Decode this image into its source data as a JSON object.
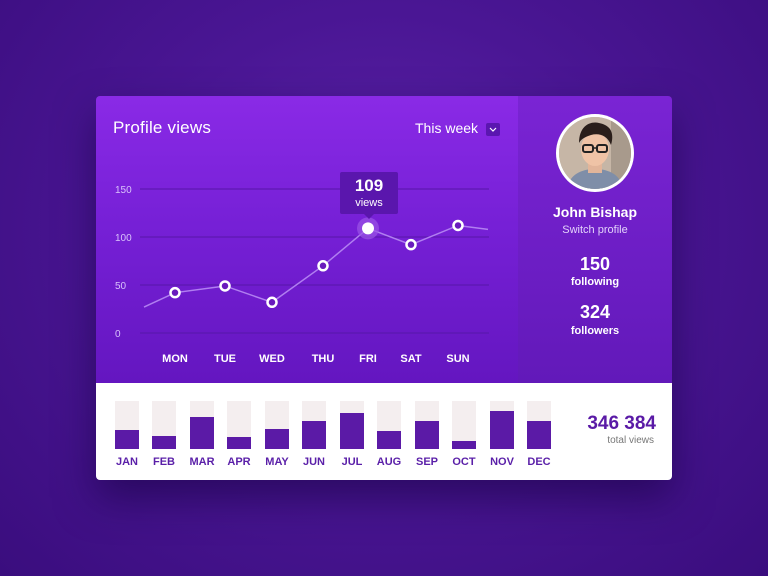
{
  "widget": {
    "title": "Profile views",
    "period": "This week",
    "tooltip": {
      "value": "109",
      "label": "views"
    }
  },
  "profile": {
    "name": "John Bishap",
    "switch_label": "Switch profile",
    "following_count": "150",
    "following_label": "following",
    "followers_count": "324",
    "followers_label": "followers"
  },
  "chart_data": [
    {
      "type": "line",
      "x": [
        "MON",
        "TUE",
        "WED",
        "THU",
        "FRI",
        "SAT",
        "SUN"
      ],
      "series": [
        {
          "values": [
            42,
            49,
            32,
            70,
            109,
            92,
            112
          ]
        }
      ],
      "ylim": [
        0,
        150
      ],
      "yticks": [
        "150",
        "100",
        "50",
        "0"
      ],
      "grid": true,
      "highlight_index": 4
    },
    {
      "type": "bar",
      "categories": [
        "JAN",
        "FEB",
        "MAR",
        "APR",
        "MAY",
        "JUN",
        "JUL",
        "AUG",
        "SEP",
        "OCT",
        "NOV",
        "DEC"
      ],
      "values": [
        0.4,
        0.27,
        0.67,
        0.25,
        0.42,
        0.58,
        0.75,
        0.38,
        0.58,
        0.17,
        0.79,
        0.58
      ]
    }
  ],
  "totals": {
    "value": "346 384",
    "label": "total views"
  },
  "colors": {
    "accent": "#5b1aa6",
    "panel_purple": "#7a22d8",
    "bar_track": "#f4eeef",
    "white": "#ffffff"
  }
}
